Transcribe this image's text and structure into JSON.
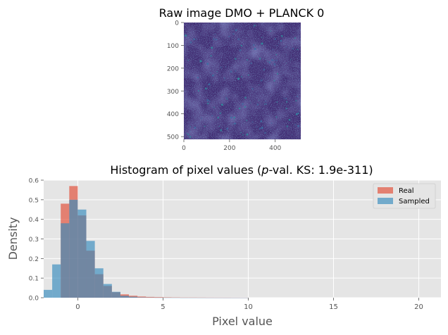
{
  "chart_data": [
    {
      "type": "image",
      "title": "Raw image DMO + PLANCK 0",
      "x_ticks": [
        0,
        200,
        400
      ],
      "y_ticks": [
        0,
        100,
        200,
        300,
        400,
        500
      ],
      "xlim": [
        0,
        512
      ],
      "ylim": [
        512,
        0
      ],
      "colormap": "viridis"
    },
    {
      "type": "histogram",
      "title_prefix": "Histogram of pixel values (",
      "title_italic": "p",
      "title_suffix": "-val. KS: 1.9e-311)",
      "xlabel": "Pixel value",
      "ylabel": "Density",
      "xlim": [
        -2,
        21.3
      ],
      "ylim": [
        0,
        0.6
      ],
      "x_ticks": [
        0,
        5,
        10,
        15,
        20
      ],
      "y_ticks": [
        0.0,
        0.1,
        0.2,
        0.3,
        0.4,
        0.5,
        0.6
      ],
      "y_tick_labels": [
        "0.0",
        "0.1",
        "0.2",
        "0.3",
        "0.4",
        "0.5",
        "0.6"
      ],
      "grid": true,
      "legend_position": "top-right",
      "bin_edges": [
        -2.0,
        -1.5,
        -1.0,
        -0.5,
        0.0,
        0.5,
        1.0,
        1.5,
        2.0,
        2.5,
        3.0,
        3.5,
        4.0,
        4.5,
        5.0,
        5.5,
        6.0,
        6.5,
        7.0,
        7.5,
        8.0,
        8.5,
        9.0,
        9.5,
        10.0
      ],
      "series": [
        {
          "name": "Real",
          "color": "#E24A33",
          "values": [
            0.0,
            0.0,
            0.48,
            0.57,
            0.42,
            0.24,
            0.12,
            0.06,
            0.028,
            0.017,
            0.01,
            0.006,
            0.004,
            0.003,
            0.002,
            0.0015,
            0.001,
            0.001,
            0.0008,
            0.0006,
            0.0005,
            0.0004,
            0.0003,
            0.0002
          ]
        },
        {
          "name": "Sampled",
          "color": "#348ABD",
          "values": [
            0.04,
            0.17,
            0.38,
            0.5,
            0.45,
            0.29,
            0.15,
            0.07,
            0.03,
            0.01,
            0.005,
            0.002,
            0.001,
            0.0005,
            0.0003,
            0.0002,
            0.0001,
            0.0001,
            0.0001,
            0.0001,
            0.0001,
            0.0001,
            0.0001,
            0.0001
          ]
        }
      ]
    }
  ]
}
